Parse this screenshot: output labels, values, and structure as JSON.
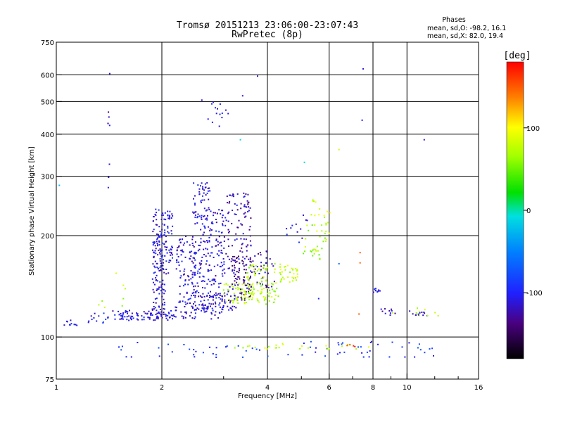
{
  "chart_data": {
    "type": "scatter",
    "title": "Tromsø 20151213 23:06:00-23:07:43",
    "subtitle": "RwPretec (8p)",
    "xlabel": "Frequency [MHz]",
    "ylabel": "Stationary phase Virtual Height [km]",
    "x_scale": "log",
    "y_scale": "log",
    "xlim": [
      1,
      16
    ],
    "ylim": [
      75,
      750
    ],
    "x_ticks": [
      1,
      2,
      4,
      6,
      8,
      10,
      16
    ],
    "x_minor_ticks": [
      3,
      5,
      7,
      9,
      12,
      14
    ],
    "x_tick_labels": [
      "1",
      "2",
      "4",
      "6",
      "8",
      "10",
      "16"
    ],
    "y_ticks": [
      75,
      100,
      200,
      300,
      400,
      500,
      600,
      750
    ],
    "y_tick_labels": [
      "75",
      "100",
      "200",
      "300",
      "400",
      "500",
      "600",
      "750"
    ],
    "grid_x": [
      2,
      4,
      6,
      8,
      10
    ],
    "grid_y": [
      100,
      200,
      300,
      400,
      500,
      600
    ],
    "phase_box": {
      "heading": "Phases",
      "line1": "mean, sd,O: -98.2, 16.1",
      "line2": "mean, sd,X:  82.0, 19.4"
    },
    "colorbar": {
      "label": "[deg]",
      "range": [
        -180,
        180
      ],
      "ticks": [
        100,
        0,
        -100
      ],
      "tick_labels": [
        "100",
        "0",
        "-100"
      ],
      "colormap": "rainbow"
    },
    "groups": [
      {
        "x_range": [
          1.4,
          2.1
        ],
        "y_range": [
          112,
          120
        ],
        "n": 90,
        "phase": -110
      },
      {
        "x_range": [
          2.1,
          3.0
        ],
        "y_range": [
          113,
          125
        ],
        "n": 60,
        "phase": -110
      },
      {
        "x_range": [
          2.6,
          3.3
        ],
        "y_range": [
          120,
          135
        ],
        "n": 40,
        "phase": -115
      },
      {
        "x_range": [
          1.88,
          2.05
        ],
        "y_range": [
          120,
          240
        ],
        "n": 150,
        "phase": -110
      },
      {
        "x_range": [
          2.05,
          2.15
        ],
        "y_range": [
          150,
          240
        ],
        "n": 45,
        "phase": -105
      },
      {
        "x_range": [
          2.2,
          2.5
        ],
        "y_range": [
          125,
          200
        ],
        "n": 90,
        "phase": -110
      },
      {
        "x_range": [
          2.45,
          2.75
        ],
        "y_range": [
          120,
          290
        ],
        "n": 170,
        "phase": -108
      },
      {
        "x_range": [
          2.75,
          3.05
        ],
        "y_range": [
          125,
          240
        ],
        "n": 100,
        "phase": -112
      },
      {
        "x_range": [
          3.05,
          3.6
        ],
        "y_range": [
          130,
          270
        ],
        "n": 120,
        "phase": -120
      },
      {
        "x_range": [
          3.1,
          3.6
        ],
        "y_range": [
          128,
          175
        ],
        "n": 60,
        "phase": -135
      },
      {
        "x_range": [
          3.6,
          4.2
        ],
        "y_range": [
          140,
          180
        ],
        "n": 40,
        "phase": -120
      },
      {
        "x_range": [
          3.0,
          3.6
        ],
        "y_range": [
          125,
          145
        ],
        "n": 50,
        "phase": 75
      },
      {
        "x_range": [
          3.5,
          4.3
        ],
        "y_range": [
          125,
          165
        ],
        "n": 90,
        "phase": 70
      },
      {
        "x_range": [
          4.3,
          4.9
        ],
        "y_range": [
          145,
          165
        ],
        "n": 35,
        "phase": 75
      },
      {
        "x_range": [
          5.0,
          5.9
        ],
        "y_range": [
          170,
          215
        ],
        "n": 30,
        "phase": 65
      },
      {
        "x_range": [
          5.3,
          6.1
        ],
        "y_range": [
          200,
          260
        ],
        "n": 18,
        "phase": 80
      },
      {
        "x_range": [
          4.5,
          5.2
        ],
        "y_range": [
          190,
          230
        ],
        "n": 12,
        "phase": -105
      },
      {
        "x_range": [
          2.7,
          3.1
        ],
        "y_range": [
          420,
          500
        ],
        "n": 14,
        "phase": -105
      },
      {
        "x_range": [
          1.4,
          1.42
        ],
        "y_range": [
          255,
          470
        ],
        "n": 7,
        "phase": -120
      },
      {
        "x_range": [
          1.05,
          1.15
        ],
        "y_range": [
          108,
          113
        ],
        "n": 10,
        "phase": -110
      },
      {
        "x_range": [
          1.2,
          1.4
        ],
        "y_range": [
          110,
          118
        ],
        "n": 12,
        "phase": -100
      },
      {
        "x_range": [
          8.0,
          8.4
        ],
        "y_range": [
          135,
          142
        ],
        "n": 10,
        "phase": -110
      },
      {
        "x_range": [
          8.4,
          9.3
        ],
        "y_range": [
          115,
          122
        ],
        "n": 10,
        "phase": -115
      },
      {
        "x_range": [
          10.1,
          11.5
        ],
        "y_range": [
          115,
          120
        ],
        "n": 12,
        "phase": -105
      },
      {
        "x_range": [
          10.5,
          12.5
        ],
        "y_range": [
          115,
          122
        ],
        "n": 8,
        "phase": 80
      },
      {
        "x_range": [
          1.3,
          1.7
        ],
        "y_range": [
          120,
          160
        ],
        "n": 8,
        "phase": 70
      },
      {
        "x_range": [
          1.5,
          12.0
        ],
        "y_range": [
          87,
          97
        ],
        "n": 70,
        "phase": -90
      },
      {
        "x_range": [
          3.2,
          7.8
        ],
        "y_range": [
          92,
          96
        ],
        "n": 25,
        "phase": 75
      },
      {
        "x_range": [
          6.6,
          7.2
        ],
        "y_range": [
          92,
          96
        ],
        "n": 4,
        "phase": 160
      }
    ],
    "outliers": [
      {
        "x": 1.42,
        "y": 605,
        "phase": -110
      },
      {
        "x": 3.75,
        "y": 595,
        "phase": -110
      },
      {
        "x": 7.5,
        "y": 625,
        "phase": -110
      },
      {
        "x": 7.45,
        "y": 440,
        "phase": -100
      },
      {
        "x": 11.2,
        "y": 385,
        "phase": -110
      },
      {
        "x": 2.6,
        "y": 505,
        "phase": -105
      },
      {
        "x": 3.4,
        "y": 520,
        "phase": -110
      },
      {
        "x": 3.35,
        "y": 385,
        "phase": -10
      },
      {
        "x": 5.1,
        "y": 330,
        "phase": -10
      },
      {
        "x": 6.4,
        "y": 360,
        "phase": 80
      },
      {
        "x": 1.02,
        "y": 282,
        "phase": -20
      },
      {
        "x": 7.35,
        "y": 178,
        "phase": 150
      },
      {
        "x": 7.35,
        "y": 166,
        "phase": 145
      },
      {
        "x": 7.3,
        "y": 117,
        "phase": 150
      },
      {
        "x": 6.4,
        "y": 165,
        "phase": -60
      },
      {
        "x": 5.6,
        "y": 130,
        "phase": -100
      },
      {
        "x": 9.1,
        "y": 118,
        "phase": 75
      }
    ]
  }
}
